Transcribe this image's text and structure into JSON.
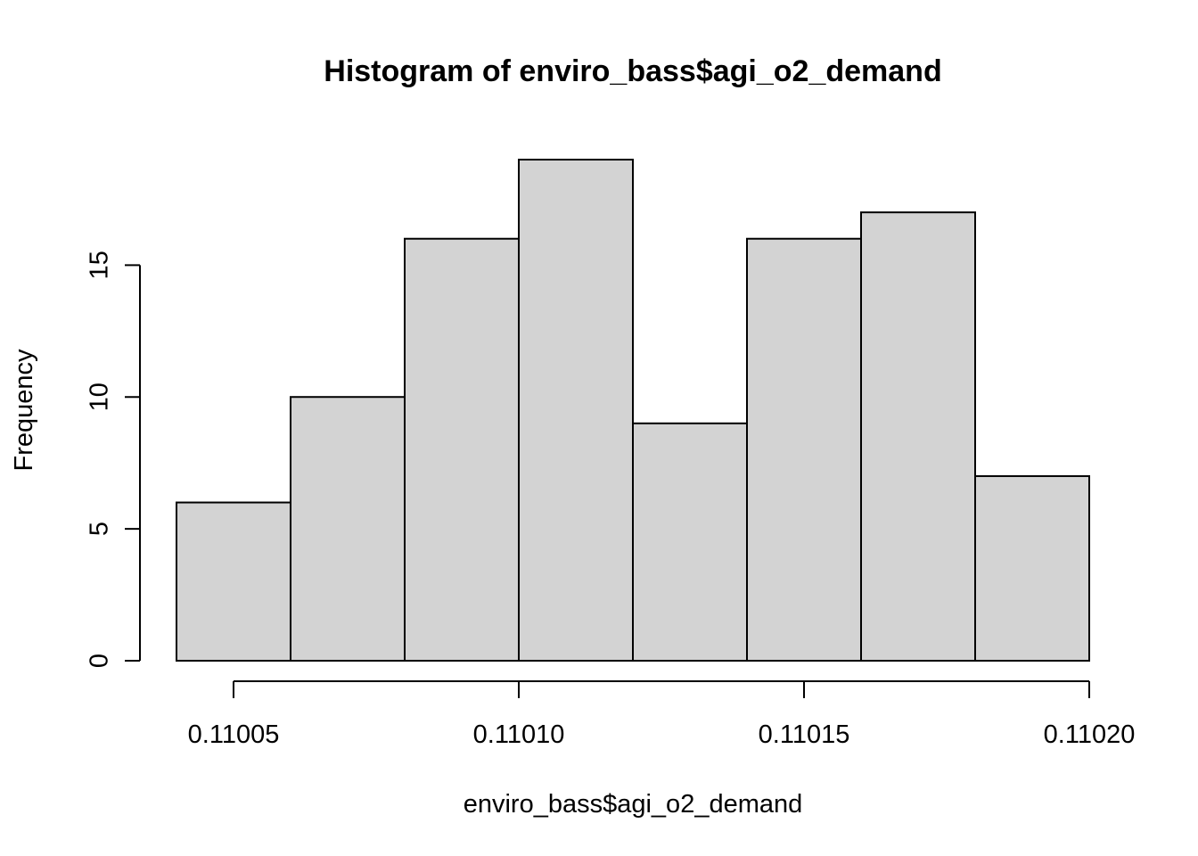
{
  "chart_data": {
    "type": "bar",
    "subtype": "histogram",
    "title": "Histogram of enviro_bass$agi_o2_demand",
    "xlabel": "enviro_bass$agi_o2_demand",
    "ylabel": "Frequency",
    "bins": [
      {
        "start": 0.11004,
        "end": 0.11006,
        "count": 6
      },
      {
        "start": 0.11006,
        "end": 0.11008,
        "count": 10
      },
      {
        "start": 0.11008,
        "end": 0.1101,
        "count": 16
      },
      {
        "start": 0.1101,
        "end": 0.11012,
        "count": 19
      },
      {
        "start": 0.11012,
        "end": 0.11014,
        "count": 9
      },
      {
        "start": 0.11014,
        "end": 0.11016,
        "count": 16
      },
      {
        "start": 0.11016,
        "end": 0.11018,
        "count": 17
      },
      {
        "start": 0.11018,
        "end": 0.1102,
        "count": 7
      }
    ],
    "x_ticks": [
      0.11005,
      0.1101,
      0.11015,
      0.1102
    ],
    "x_tick_labels": [
      "0.11005",
      "0.11010",
      "0.11015",
      "0.11020"
    ],
    "y_ticks": [
      0,
      5,
      10,
      15
    ],
    "y_tick_labels": [
      "0",
      "5",
      "10",
      "15"
    ],
    "xlim": [
      0.11004,
      0.1102
    ],
    "ylim": [
      0,
      19
    ],
    "grid": false,
    "colors": {
      "bar_fill": "#d3d3d3",
      "bar_stroke": "#000000",
      "axis": "#000000",
      "background": "#ffffff"
    }
  }
}
